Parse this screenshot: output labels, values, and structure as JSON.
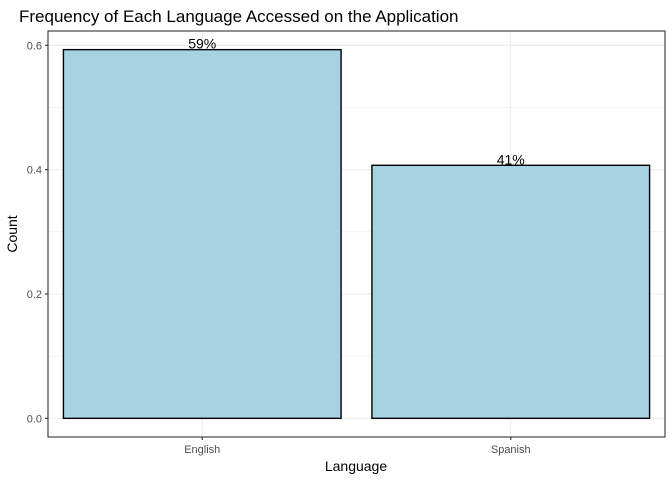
{
  "chart_data": {
    "type": "bar",
    "title": "Frequency of Each Language Accessed on the Application",
    "xlabel": "Language",
    "ylabel": "Count",
    "categories": [
      "English",
      "Spanish"
    ],
    "values": [
      0.593,
      0.407
    ],
    "data_labels": [
      "59%",
      "41%"
    ],
    "yticks": [
      "0.0",
      "0.2",
      "0.4",
      "0.6"
    ],
    "ylim": [
      -0.03,
      0.623
    ],
    "grid": true,
    "legend": "none",
    "bar_color": "#a6d2e2",
    "bar_outline_color": "#000000"
  }
}
